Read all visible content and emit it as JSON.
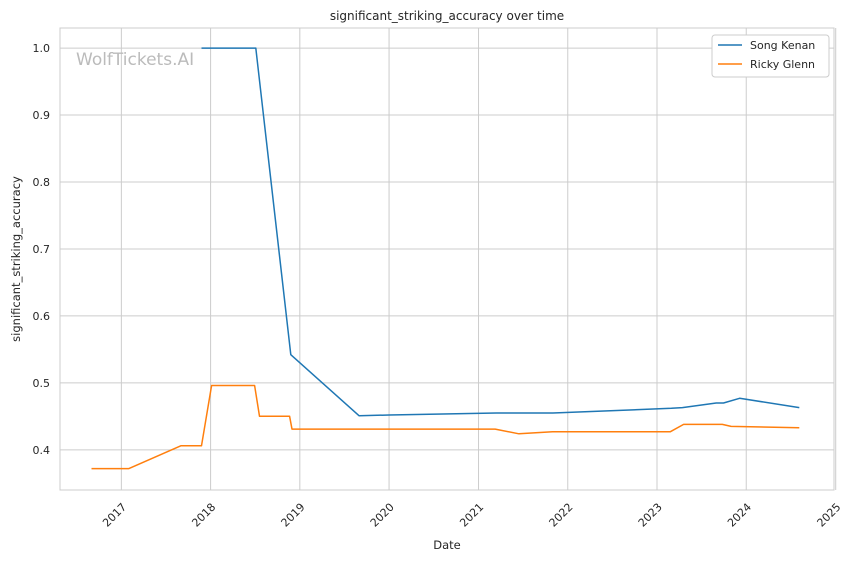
{
  "watermark": "WolfTickets.AI",
  "chart_data": {
    "type": "line",
    "title": "significant_striking_accuracy over time",
    "xlabel": "Date",
    "ylabel": "significant_striking_accuracy",
    "x_axis_type": "date",
    "xlim": [
      "2016-04-25",
      "2024-12-25"
    ],
    "ylim": [
      0.34,
      1.03
    ],
    "x_ticks": [
      "2017",
      "2018",
      "2019",
      "2020",
      "2021",
      "2022",
      "2023",
      "2024",
      "2025"
    ],
    "y_ticks": [
      "0.4",
      "0.5",
      "0.6",
      "0.7",
      "0.8",
      "0.9",
      "1.0"
    ],
    "grid": true,
    "legend_position": "top-right",
    "series": [
      {
        "name": "Song Kenan",
        "color": "#1f77b4",
        "points": [
          [
            "2017-11-25",
            1.0
          ],
          [
            "2018-07-05",
            1.0
          ],
          [
            "2018-11-25",
            0.542
          ],
          [
            "2019-08-31",
            0.451
          ],
          [
            "2020-01-01",
            0.452
          ],
          [
            "2021-03-15",
            0.455
          ],
          [
            "2021-11-01",
            0.455
          ],
          [
            "2023-03-01",
            0.462
          ],
          [
            "2023-04-15",
            0.463
          ],
          [
            "2023-08-31",
            0.47
          ],
          [
            "2023-09-30",
            0.47
          ],
          [
            "2023-12-05",
            0.477
          ],
          [
            "2024-08-05",
            0.463
          ]
        ]
      },
      {
        "name": "Ricky Glenn",
        "color": "#ff7f0e",
        "points": [
          [
            "2016-09-01",
            0.372
          ],
          [
            "2017-02-01",
            0.372
          ],
          [
            "2017-09-01",
            0.406
          ],
          [
            "2017-11-25",
            0.406
          ],
          [
            "2018-01-05",
            0.496
          ],
          [
            "2018-06-30",
            0.496
          ],
          [
            "2018-07-20",
            0.45
          ],
          [
            "2018-11-20",
            0.45
          ],
          [
            "2018-11-30",
            0.431
          ],
          [
            "2021-03-10",
            0.431
          ],
          [
            "2021-06-15",
            0.424
          ],
          [
            "2021-10-31",
            0.427
          ],
          [
            "2023-02-25",
            0.427
          ],
          [
            "2023-04-20",
            0.438
          ],
          [
            "2023-09-25",
            0.438
          ],
          [
            "2023-10-31",
            0.435
          ],
          [
            "2024-08-05",
            0.433
          ]
        ]
      }
    ]
  }
}
